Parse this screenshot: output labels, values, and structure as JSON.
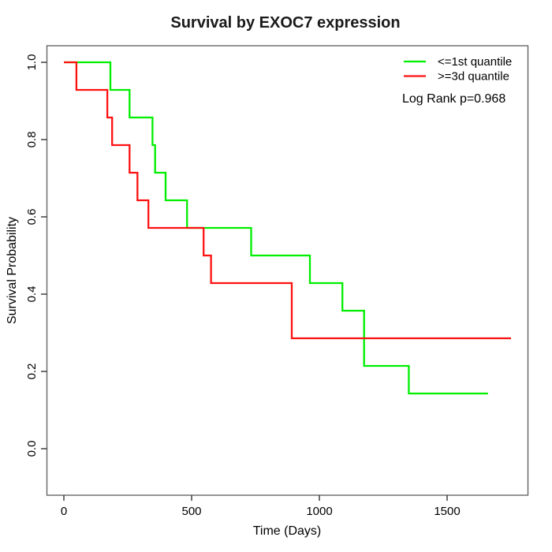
{
  "chart_data": {
    "type": "line",
    "subtype": "kaplan-meier-step",
    "title": "Survival by EXOC7 expression",
    "xlabel": "Time (Days)",
    "ylabel": "Survival Probability",
    "annotation": "Log Rank p=0.968",
    "legend_position": "top-right",
    "grid": false,
    "x_ticks": [
      0,
      500,
      1000,
      1500
    ],
    "y_ticks": [
      "0.0",
      "0.2",
      "0.4",
      "0.6",
      "0.8",
      "1.0"
    ],
    "xlim": [
      -70,
      1818
    ],
    "ylim": [
      0.0,
      1.04
    ],
    "series": [
      {
        "name": "<=1st quantile",
        "color": "#00ee00",
        "start": [
          0,
          1.0
        ],
        "steps": [
          [
            182,
            0.9286
          ],
          [
            257,
            0.8571
          ],
          [
            347,
            0.7857
          ],
          [
            357,
            0.7143
          ],
          [
            398,
            0.6429
          ],
          [
            482,
            0.5714
          ],
          [
            733,
            0.5
          ],
          [
            963,
            0.4286
          ],
          [
            1090,
            0.3571
          ],
          [
            1175,
            0.2143
          ],
          [
            1350,
            0.1429
          ]
        ],
        "end_time": 1660
      },
      {
        "name": ">=3d quantile",
        "color": "#ff1111",
        "start": [
          0,
          1.0
        ],
        "steps": [
          [
            49,
            0.9286
          ],
          [
            170,
            0.8571
          ],
          [
            189,
            0.7857
          ],
          [
            257,
            0.7143
          ],
          [
            288,
            0.6429
          ],
          [
            331,
            0.5714
          ],
          [
            547,
            0.5
          ],
          [
            576,
            0.4286
          ],
          [
            892,
            0.2857
          ]
        ],
        "end_time": 1750
      }
    ]
  }
}
